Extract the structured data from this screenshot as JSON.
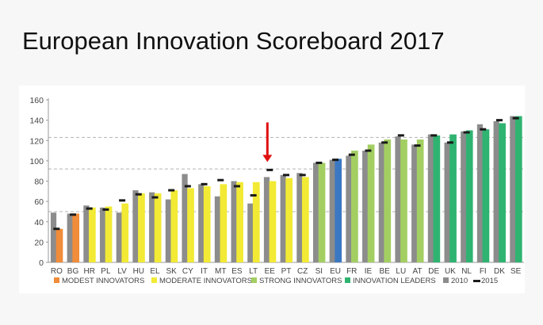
{
  "slide": {
    "title": "European Innovation Scoreboard 2017"
  },
  "colors": {
    "modest": "#f08c3a",
    "moderate": "#f2ea34",
    "strong": "#a3cf62",
    "leaders": "#2fb371",
    "eu": "#3b78c3",
    "bar2010": "#8c8c8c",
    "mark2015": "#1a1a1a",
    "arrow": "#e01010"
  },
  "chart_data": {
    "type": "bar",
    "title": "",
    "xlabel": "",
    "ylabel": "",
    "ylim": [
      0,
      160
    ],
    "yticks": [
      0,
      20,
      40,
      60,
      80,
      100,
      120,
      140,
      160
    ],
    "reference_lines": [
      50,
      92,
      123
    ],
    "grid": false,
    "legend_position": "bottom",
    "highlight": {
      "category": "EE",
      "marker": "red down arrow"
    },
    "categories": [
      "RO",
      "BG",
      "HR",
      "PL",
      "LV",
      "HU",
      "EL",
      "SK",
      "CY",
      "IT",
      "MT",
      "ES",
      "LT",
      "EE",
      "PT",
      "CZ",
      "SI",
      "EU",
      "FR",
      "IE",
      "BE",
      "LU",
      "AT",
      "DE",
      "UK",
      "NL",
      "FI",
      "DK",
      "SE"
    ],
    "groups": [
      "modest",
      "modest",
      "moderate",
      "moderate",
      "moderate",
      "moderate",
      "moderate",
      "moderate",
      "moderate",
      "moderate",
      "moderate",
      "moderate",
      "moderate",
      "moderate",
      "moderate",
      "moderate",
      "strong",
      "eu",
      "strong",
      "strong",
      "strong",
      "strong",
      "strong",
      "leaders",
      "leaders",
      "leaders",
      "leaders",
      "leaders",
      "leaders"
    ],
    "series": [
      {
        "name": "2017",
        "values": [
          33,
          48,
          54,
          55,
          58,
          68,
          68,
          71,
          73,
          75,
          77,
          79,
          79,
          80,
          83,
          84,
          98,
          102,
          110,
          116,
          121,
          121,
          121,
          125,
          126,
          130,
          131,
          137,
          144
        ]
      },
      {
        "name": "2010",
        "values": [
          49,
          48,
          56,
          54,
          49,
          71,
          69,
          62,
          87,
          77,
          65,
          80,
          58,
          84,
          86,
          88,
          98,
          101,
          105,
          110,
          118,
          124,
          116,
          126,
          118,
          129,
          136,
          139,
          144
        ]
      },
      {
        "name": "2015",
        "values": [
          33,
          47,
          53,
          52,
          61,
          67,
          64,
          71,
          75,
          77,
          81,
          75,
          66,
          91,
          86,
          86,
          98,
          101,
          106,
          110,
          118,
          125,
          115,
          125,
          118,
          128,
          131,
          140,
          142
        ]
      }
    ],
    "legend": [
      {
        "key": "modest",
        "label": "MODEST INNOVATORS",
        "marker": "square"
      },
      {
        "key": "moderate",
        "label": "MODERATE INNOVATORS",
        "marker": "square"
      },
      {
        "key": "strong",
        "label": "STRONG INNOVATORS",
        "marker": "square"
      },
      {
        "key": "leaders",
        "label": "INNOVATION LEADERS",
        "marker": "square"
      },
      {
        "key": "bar2010",
        "label": "2010",
        "marker": "square"
      },
      {
        "key": "mark2015",
        "label": "2015",
        "marker": "dash"
      }
    ]
  }
}
